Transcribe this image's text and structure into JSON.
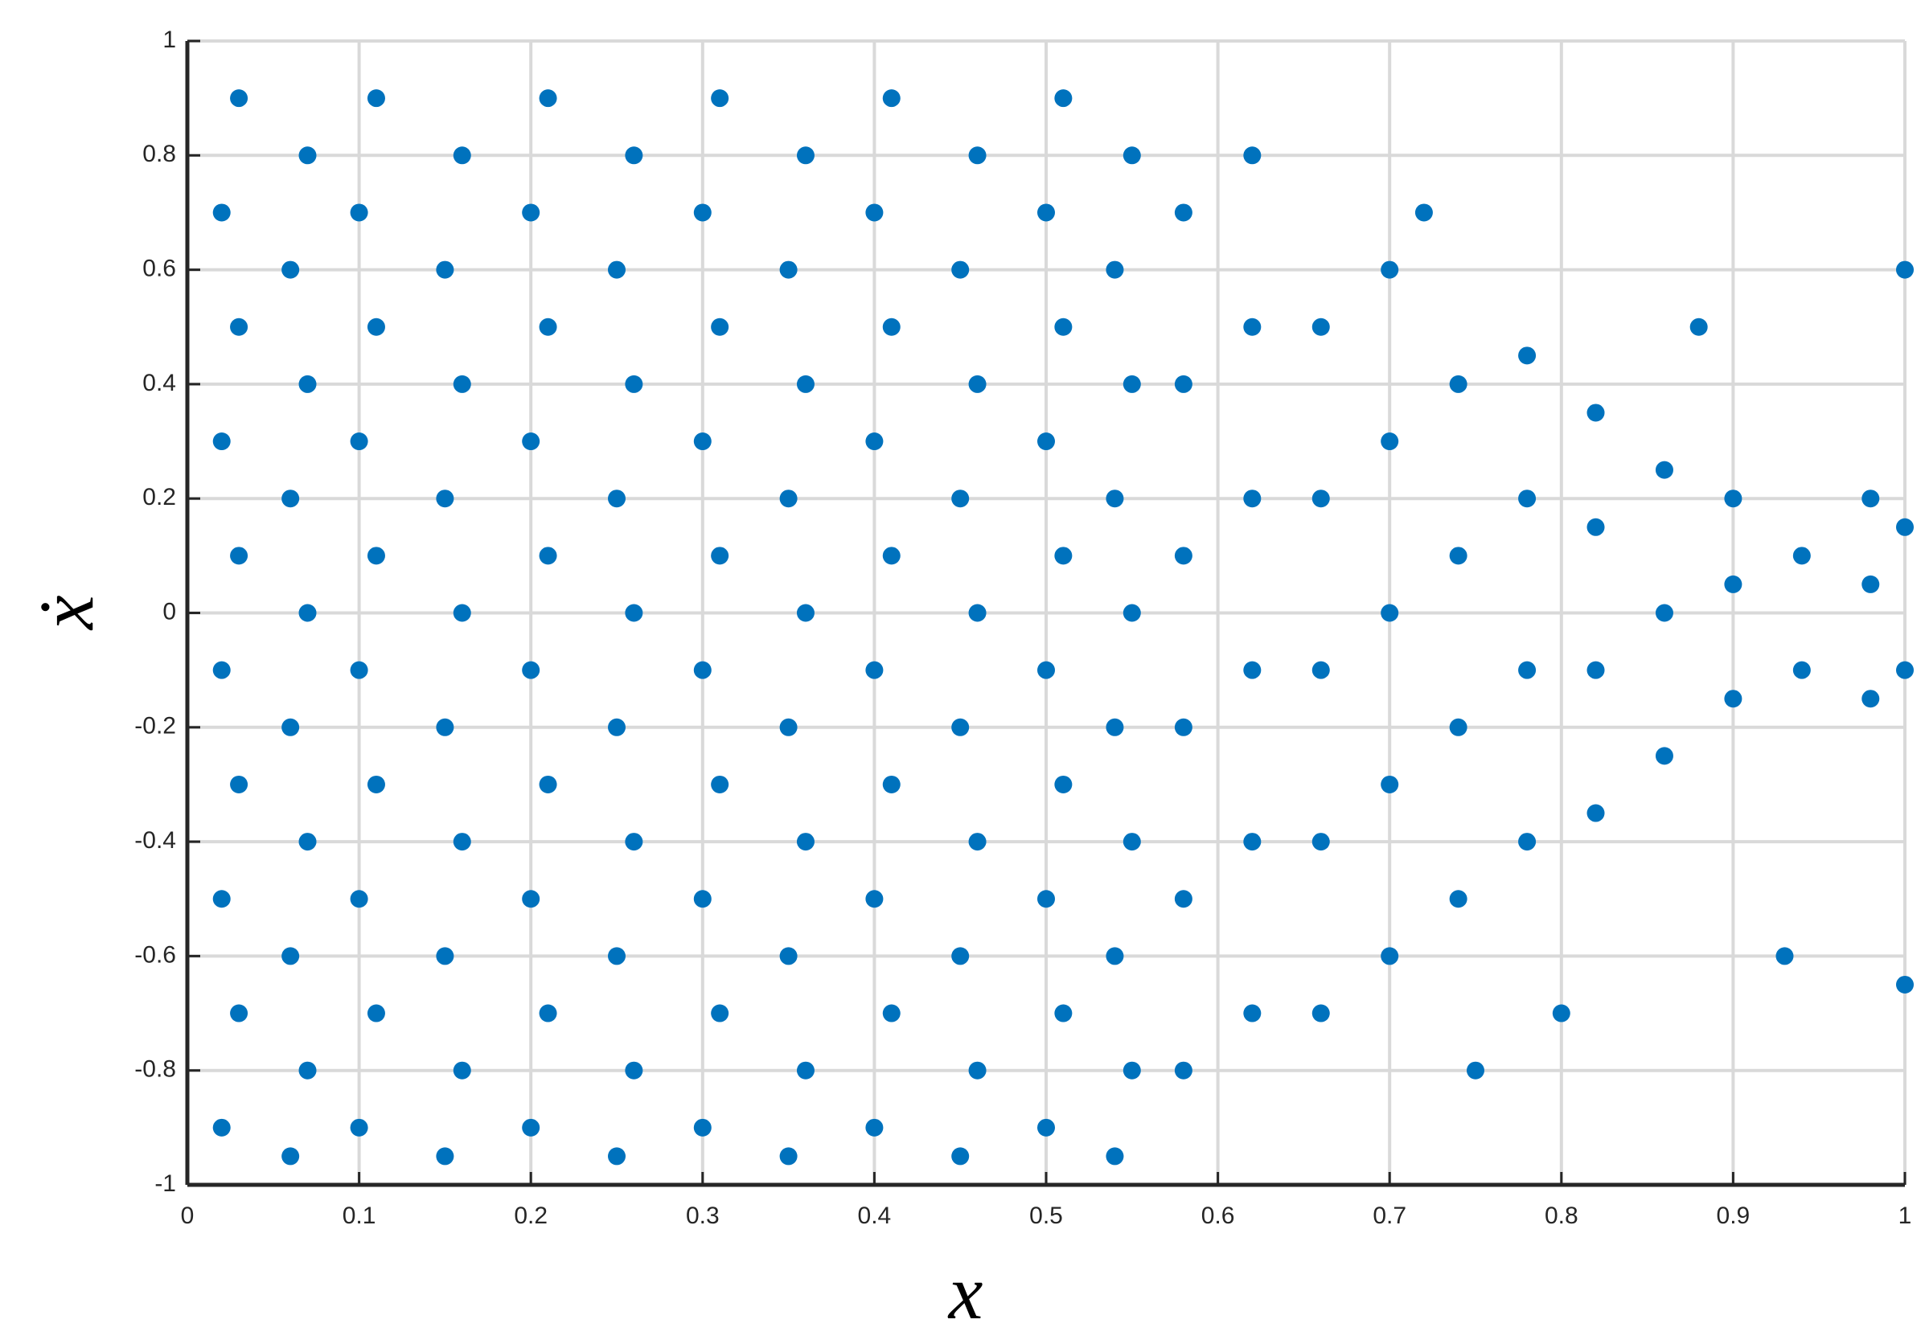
{
  "chart_data": {
    "type": "scatter",
    "xlabel": "x",
    "ylabel": "ẋ",
    "color": "#0072bd",
    "grid": true,
    "xlim": [
      0,
      1
    ],
    "ylim": [
      -1,
      1
    ],
    "xticks": [
      0,
      0.1,
      0.2,
      0.3,
      0.4,
      0.5,
      0.6,
      0.7,
      0.8,
      0.9,
      1
    ],
    "yticks": [
      -1,
      -0.8,
      -0.6,
      -0.4,
      -0.2,
      0,
      0.2,
      0.4,
      0.6,
      0.8,
      1
    ],
    "x": [
      0.02,
      0.03,
      0.02,
      0.03,
      0.02,
      0.03,
      0.02,
      0.03,
      0.02,
      0.03,
      0.06,
      0.07,
      0.06,
      0.07,
      0.06,
      0.07,
      0.06,
      0.07,
      0.06,
      0.07,
      0.1,
      0.11,
      0.1,
      0.11,
      0.1,
      0.11,
      0.1,
      0.11,
      0.1,
      0.11,
      0.15,
      0.16,
      0.15,
      0.16,
      0.15,
      0.16,
      0.15,
      0.16,
      0.15,
      0.16,
      0.2,
      0.21,
      0.2,
      0.21,
      0.2,
      0.21,
      0.2,
      0.21,
      0.2,
      0.21,
      0.25,
      0.26,
      0.25,
      0.26,
      0.25,
      0.26,
      0.25,
      0.26,
      0.25,
      0.26,
      0.3,
      0.31,
      0.3,
      0.31,
      0.3,
      0.31,
      0.3,
      0.31,
      0.3,
      0.31,
      0.35,
      0.36,
      0.35,
      0.36,
      0.35,
      0.36,
      0.35,
      0.36,
      0.35,
      0.36,
      0.4,
      0.41,
      0.4,
      0.41,
      0.4,
      0.41,
      0.4,
      0.41,
      0.4,
      0.41,
      0.45,
      0.46,
      0.45,
      0.46,
      0.45,
      0.46,
      0.45,
      0.46,
      0.45,
      0.46,
      0.5,
      0.51,
      0.5,
      0.51,
      0.5,
      0.51,
      0.5,
      0.51,
      0.5,
      0.51,
      0.54,
      0.55,
      0.54,
      0.55,
      0.54,
      0.55,
      0.54,
      0.55,
      0.54,
      0.55,
      0.58,
      0.58,
      0.58,
      0.58,
      0.58,
      0.58,
      0.62,
      0.62,
      0.62,
      0.62,
      0.62,
      0.62,
      0.66,
      0.66,
      0.66,
      0.66,
      0.66,
      0.7,
      0.7,
      0.7,
      0.7,
      0.7,
      0.74,
      0.74,
      0.74,
      0.74,
      0.78,
      0.78,
      0.78,
      0.78,
      0.82,
      0.82,
      0.82,
      0.82,
      0.86,
      0.86,
      0.86,
      0.9,
      0.9,
      0.9,
      0.94,
      0.94,
      0.98,
      0.98,
      0.98,
      1,
      1,
      0.72,
      0.8,
      0.88,
      0.75,
      0.93,
      1,
      1
    ],
    "y": [
      -0.9,
      -0.7,
      -0.5,
      -0.3,
      -0.1,
      0.1,
      0.3,
      0.5,
      0.7,
      0.9,
      -0.95,
      -0.8,
      -0.6,
      -0.4,
      -0.2,
      0,
      0.2,
      0.4,
      0.6,
      0.8,
      -0.9,
      -0.7,
      -0.5,
      -0.3,
      -0.1,
      0.1,
      0.3,
      0.5,
      0.7,
      0.9,
      -0.95,
      -0.8,
      -0.6,
      -0.4,
      -0.2,
      0,
      0.2,
      0.4,
      0.6,
      0.8,
      -0.9,
      -0.7,
      -0.5,
      -0.3,
      -0.1,
      0.1,
      0.3,
      0.5,
      0.7,
      0.9,
      -0.95,
      -0.8,
      -0.6,
      -0.4,
      -0.2,
      0,
      0.2,
      0.4,
      0.6,
      0.8,
      -0.9,
      -0.7,
      -0.5,
      -0.3,
      -0.1,
      0.1,
      0.3,
      0.5,
      0.7,
      0.9,
      -0.95,
      -0.8,
      -0.6,
      -0.4,
      -0.2,
      0,
      0.2,
      0.4,
      0.6,
      0.8,
      -0.9,
      -0.7,
      -0.5,
      -0.3,
      -0.1,
      0.1,
      0.3,
      0.5,
      0.7,
      0.9,
      -0.95,
      -0.8,
      -0.6,
      -0.4,
      -0.2,
      0,
      0.2,
      0.4,
      0.6,
      0.8,
      -0.9,
      -0.7,
      -0.5,
      -0.3,
      -0.1,
      0.1,
      0.3,
      0.5,
      0.7,
      0.9,
      -0.95,
      -0.8,
      -0.6,
      -0.4,
      -0.2,
      0,
      0.2,
      0.4,
      0.6,
      0.8,
      -0.8,
      -0.5,
      -0.2,
      0.1,
      0.4,
      0.7,
      -0.7,
      -0.4,
      -0.1,
      0.2,
      0.5,
      0.8,
      -0.7,
      -0.4,
      -0.1,
      0.2,
      0.5,
      -0.6,
      -0.3,
      0,
      0.3,
      0.6,
      -0.5,
      -0.2,
      0.1,
      0.4,
      -0.4,
      -0.1,
      0.2,
      0.45,
      -0.35,
      -0.1,
      0.15,
      0.35,
      -0.25,
      0,
      0.25,
      -0.15,
      0.05,
      0.2,
      -0.1,
      0.1,
      -0.15,
      0.05,
      0.2,
      -0.1,
      0.15,
      0.7,
      -0.7,
      0.5,
      -0.8,
      -0.6,
      0.6,
      -0.65
    ]
  }
}
